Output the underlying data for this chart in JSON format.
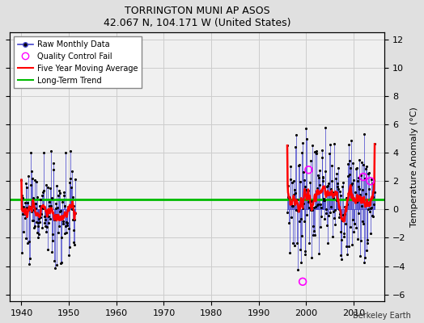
{
  "title": "TORRINGTON MUNI AP ASOS",
  "subtitle": "42.067 N, 104.171 W (United States)",
  "ylabel": "Temperature Anomaly (°C)",
  "credit": "Berkeley Earth",
  "xlim": [
    1937.5,
    2016.5
  ],
  "ylim": [
    -6.5,
    12.5
  ],
  "yticks": [
    -6,
    -4,
    -2,
    0,
    2,
    4,
    6,
    8,
    10,
    12
  ],
  "xticks": [
    1940,
    1950,
    1960,
    1970,
    1980,
    1990,
    2000,
    2010
  ],
  "bg_color": "#e0e0e0",
  "plot_bg": "#f0f0f0",
  "grid_color": "#cccccc",
  "data_line_color": "#4444cc",
  "data_dot_color": "#000000",
  "stem_color": "#4444cc",
  "qc_color": "#ff00ff",
  "moving_avg_color": "#ff0000",
  "trend_color": "#00bb00",
  "period1_seed": 10,
  "period1_start": 1940.0,
  "period1_end": 1951.5,
  "period1_mean": -0.3,
  "period1_std": 1.8,
  "period2_seed": 7,
  "period2_start": 1996.0,
  "period2_end": 2014.5,
  "period2_mean": 0.8,
  "period2_std": 2.2,
  "qc_years": [
    1999.25,
    2000.5,
    2012.0,
    2013.5
  ],
  "qc_vals": [
    -5.1,
    2.8,
    2.3,
    2.0
  ],
  "trend_y": 0.7,
  "ma_window": 15
}
